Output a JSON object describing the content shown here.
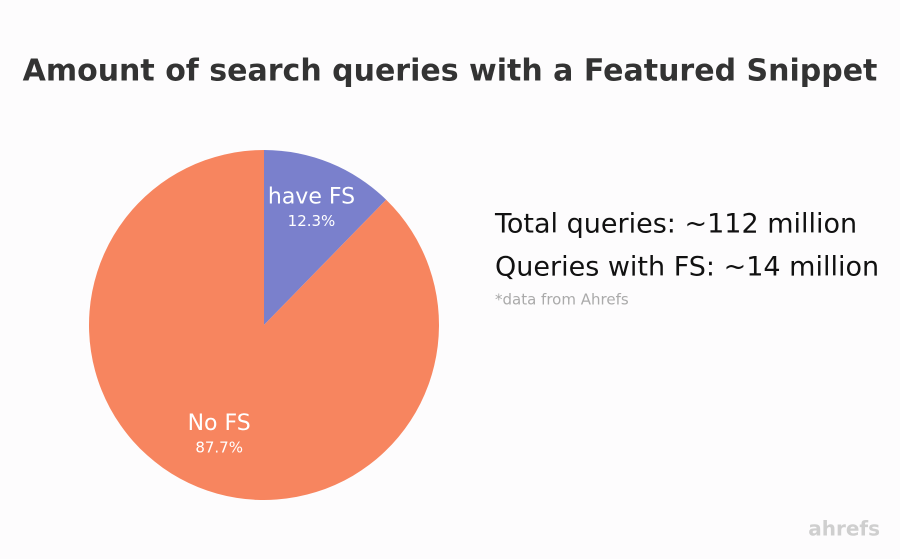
{
  "chart_data": {
    "type": "pie",
    "title": "Amount of search queries with a Featured Snippet",
    "categories": [
      "have FS",
      "No FS"
    ],
    "values": [
      12.3,
      87.7
    ],
    "value_labels": [
      "12.3%",
      "87.7%"
    ],
    "colors": [
      "#7a80cc",
      "#f7855f"
    ],
    "annotations": [
      "Total queries: ~112 million",
      "Queries with FS: ~14 million",
      "*data from Ahrefs"
    ],
    "logo": "ahrefs"
  }
}
